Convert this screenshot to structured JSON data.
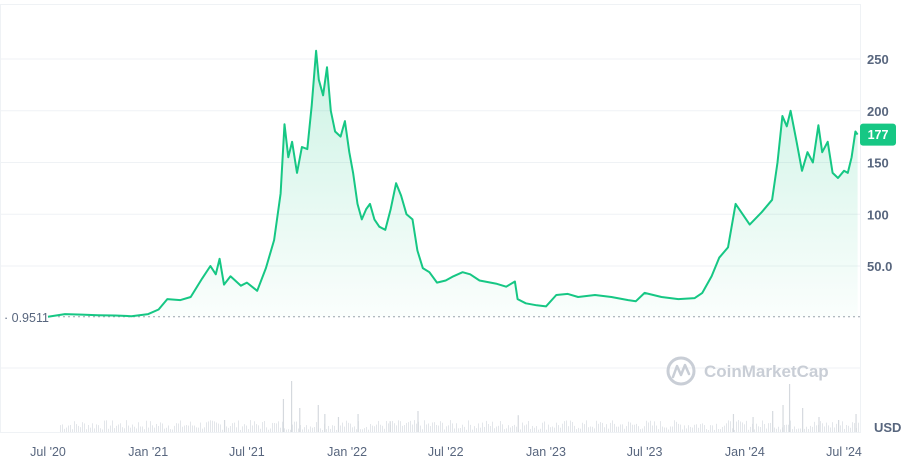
{
  "chart_data": {
    "type": "area",
    "unit": "USD",
    "watermark": "CoinMarketCap",
    "baseline_label": "0.9511",
    "baseline_value": 0.9511,
    "last_price_label": "177",
    "last_price": 177,
    "colors": {
      "line": "#16c784",
      "grid": "#eff2f5",
      "text": "#58667e",
      "badge": "#16c784"
    },
    "y_ticks": [
      {
        "value": 50,
        "label": "50.0"
      },
      {
        "value": 100,
        "label": "100"
      },
      {
        "value": 150,
        "label": "150"
      },
      {
        "value": 200,
        "label": "200"
      },
      {
        "value": 250,
        "label": "250"
      }
    ],
    "x_ticks": [
      {
        "date": "2020-07-01",
        "label": "Jul '20"
      },
      {
        "date": "2021-01-01",
        "label": "Jan '21"
      },
      {
        "date": "2021-07-01",
        "label": "Jul '21"
      },
      {
        "date": "2022-01-01",
        "label": "Jan '22"
      },
      {
        "date": "2022-07-01",
        "label": "Jul '22"
      },
      {
        "date": "2023-01-01",
        "label": "Jan '23"
      },
      {
        "date": "2023-07-01",
        "label": "Jul '23"
      },
      {
        "date": "2024-01-01",
        "label": "Jan '24"
      },
      {
        "date": "2024-07-01",
        "label": "Jul '24"
      }
    ],
    "xlim": [
      "2020-05-01",
      "2024-09-01"
    ],
    "ylim": [
      -110,
      290
    ],
    "grid": true,
    "series": [
      {
        "points": [
          [
            "2020-07-01",
            1.0
          ],
          [
            "2020-08-01",
            3.5
          ],
          [
            "2020-09-01",
            3.0
          ],
          [
            "2020-10-01",
            2.5
          ],
          [
            "2020-11-01",
            2.2
          ],
          [
            "2020-12-01",
            1.5
          ],
          [
            "2021-01-01",
            3.5
          ],
          [
            "2021-01-20",
            8
          ],
          [
            "2021-02-05",
            18
          ],
          [
            "2021-03-01",
            17
          ],
          [
            "2021-03-20",
            20
          ],
          [
            "2021-04-10",
            38
          ],
          [
            "2021-04-25",
            50
          ],
          [
            "2021-05-05",
            42
          ],
          [
            "2021-05-12",
            57
          ],
          [
            "2021-05-20",
            32
          ],
          [
            "2021-06-01",
            40
          ],
          [
            "2021-06-20",
            31
          ],
          [
            "2021-07-01",
            34
          ],
          [
            "2021-07-20",
            26
          ],
          [
            "2021-08-05",
            48
          ],
          [
            "2021-08-20",
            75
          ],
          [
            "2021-09-01",
            120
          ],
          [
            "2021-09-08",
            187
          ],
          [
            "2021-09-15",
            155
          ],
          [
            "2021-09-22",
            170
          ],
          [
            "2021-10-01",
            140
          ],
          [
            "2021-10-10",
            165
          ],
          [
            "2021-10-20",
            163
          ],
          [
            "2021-10-28",
            205
          ],
          [
            "2021-11-05",
            258
          ],
          [
            "2021-11-10",
            230
          ],
          [
            "2021-11-18",
            215
          ],
          [
            "2021-11-25",
            242
          ],
          [
            "2021-12-02",
            200
          ],
          [
            "2021-12-10",
            180
          ],
          [
            "2021-12-20",
            175
          ],
          [
            "2021-12-28",
            190
          ],
          [
            "2022-01-05",
            160
          ],
          [
            "2022-01-12",
            140
          ],
          [
            "2022-01-20",
            110
          ],
          [
            "2022-01-28",
            95
          ],
          [
            "2022-02-05",
            105
          ],
          [
            "2022-02-12",
            110
          ],
          [
            "2022-02-20",
            95
          ],
          [
            "2022-03-01",
            88
          ],
          [
            "2022-03-12",
            85
          ],
          [
            "2022-03-22",
            105
          ],
          [
            "2022-04-01",
            130
          ],
          [
            "2022-04-10",
            118
          ],
          [
            "2022-04-20",
            100
          ],
          [
            "2022-05-01",
            95
          ],
          [
            "2022-05-10",
            65
          ],
          [
            "2022-05-20",
            48
          ],
          [
            "2022-06-01",
            44
          ],
          [
            "2022-06-15",
            34
          ],
          [
            "2022-07-01",
            36
          ],
          [
            "2022-07-15",
            40
          ],
          [
            "2022-08-01",
            44
          ],
          [
            "2022-08-15",
            42
          ],
          [
            "2022-09-01",
            36
          ],
          [
            "2022-10-01",
            33
          ],
          [
            "2022-10-20",
            30
          ],
          [
            "2022-11-05",
            35
          ],
          [
            "2022-11-10",
            18
          ],
          [
            "2022-11-25",
            14
          ],
          [
            "2022-12-15",
            12
          ],
          [
            "2023-01-01",
            11
          ],
          [
            "2023-01-20",
            22
          ],
          [
            "2023-02-10",
            23
          ],
          [
            "2023-03-01",
            20
          ],
          [
            "2023-04-01",
            22
          ],
          [
            "2023-05-01",
            20
          ],
          [
            "2023-06-01",
            17
          ],
          [
            "2023-06-15",
            16
          ],
          [
            "2023-07-01",
            24
          ],
          [
            "2023-08-01",
            20
          ],
          [
            "2023-09-01",
            18
          ],
          [
            "2023-10-01",
            19
          ],
          [
            "2023-10-15",
            24
          ],
          [
            "2023-11-01",
            40
          ],
          [
            "2023-11-15",
            58
          ],
          [
            "2023-12-01",
            68
          ],
          [
            "2023-12-15",
            110
          ],
          [
            "2023-12-28",
            100
          ],
          [
            "2024-01-10",
            90
          ],
          [
            "2024-02-01",
            102
          ],
          [
            "2024-02-20",
            114
          ],
          [
            "2024-03-01",
            150
          ],
          [
            "2024-03-10",
            195
          ],
          [
            "2024-03-18",
            185
          ],
          [
            "2024-03-25",
            200
          ],
          [
            "2024-04-05",
            170
          ],
          [
            "2024-04-15",
            142
          ],
          [
            "2024-04-25",
            160
          ],
          [
            "2024-05-05",
            150
          ],
          [
            "2024-05-15",
            186
          ],
          [
            "2024-05-22",
            160
          ],
          [
            "2024-06-01",
            170
          ],
          [
            "2024-06-10",
            140
          ],
          [
            "2024-06-20",
            135
          ],
          [
            "2024-07-01",
            142
          ],
          [
            "2024-07-08",
            140
          ],
          [
            "2024-07-15",
            155
          ],
          [
            "2024-07-22",
            180
          ],
          [
            "2024-07-26",
            177
          ]
        ]
      }
    ],
    "volume_spikes": [
      [
        "2021-05-20",
        0.2
      ],
      [
        "2021-09-05",
        0.55
      ],
      [
        "2021-09-20",
        0.85
      ],
      [
        "2021-10-05",
        0.4
      ],
      [
        "2021-11-08",
        0.45
      ],
      [
        "2021-11-20",
        0.3
      ],
      [
        "2021-12-15",
        0.25
      ],
      [
        "2022-01-20",
        0.3
      ],
      [
        "2022-03-20",
        0.18
      ],
      [
        "2022-05-10",
        0.35
      ],
      [
        "2022-11-10",
        0.28
      ],
      [
        "2023-12-10",
        0.3
      ],
      [
        "2024-01-15",
        0.25
      ],
      [
        "2024-02-20",
        0.35
      ],
      [
        "2024-03-10",
        0.45
      ],
      [
        "2024-03-22",
        0.8
      ],
      [
        "2024-04-15",
        0.4
      ],
      [
        "2024-05-15",
        0.25
      ],
      [
        "2024-06-20",
        0.2
      ],
      [
        "2024-07-22",
        0.3
      ]
    ]
  }
}
